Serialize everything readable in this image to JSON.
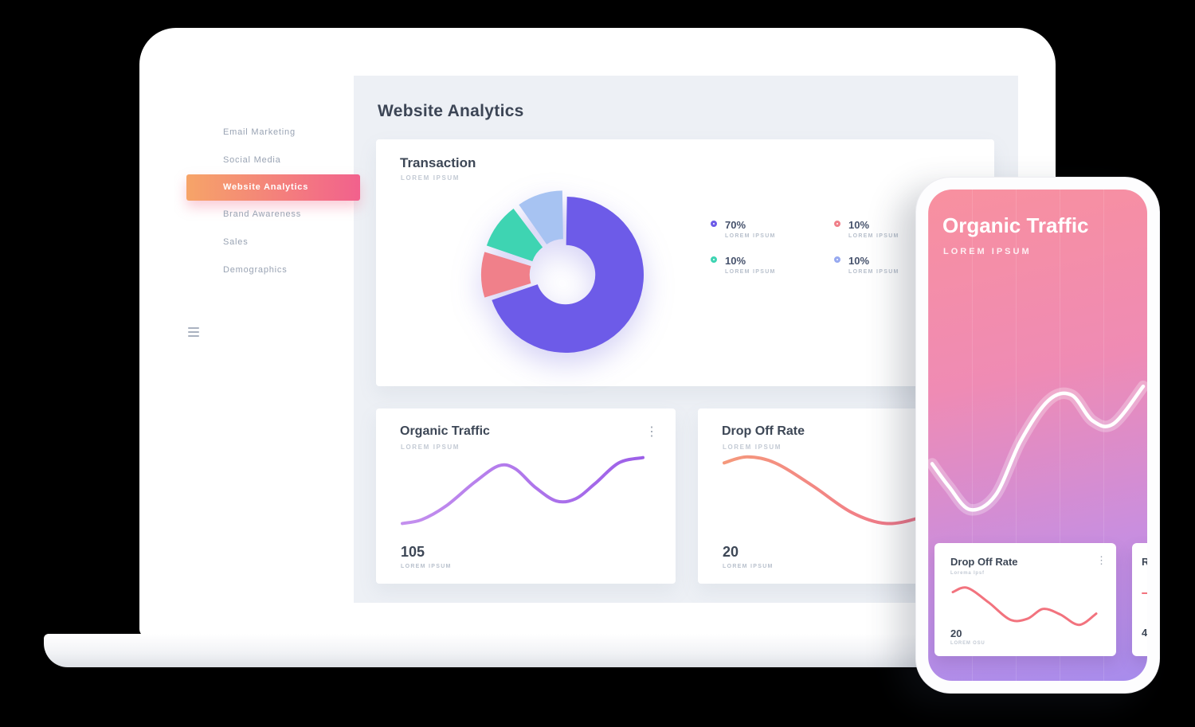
{
  "icons": {
    "kebab": "⋮"
  },
  "laptop": {
    "sidebar": {
      "items": [
        {
          "label": "Email Marketing",
          "active": false
        },
        {
          "label": "Social Media",
          "active": false
        },
        {
          "label": "Website Analytics",
          "active": true
        },
        {
          "label": "Brand Awareness",
          "active": false
        },
        {
          "label": "Sales",
          "active": false
        },
        {
          "label": "Demographics",
          "active": false
        }
      ]
    },
    "page_title": "Website Analytics",
    "transaction_card": {
      "title": "Transaction",
      "subtitle": "LOREM IPSUM",
      "legend": [
        {
          "value": "70%",
          "label": "LOREM IPSUM",
          "color": "#6d5be8"
        },
        {
          "value": "10%",
          "label": "LOREM IPSUM",
          "color": "#f0808a"
        },
        {
          "value": "10%",
          "label": "LOREM IPSUM",
          "color": "#3ed4b2"
        },
        {
          "value": "10%",
          "label": "LOREM IPSUM",
          "color": "#97a9f0"
        }
      ]
    },
    "organic_card": {
      "title": "Organic Traffic",
      "subtitle": "LOREM IPSUM",
      "value": "105",
      "value_label": "LOREM IPSUM"
    },
    "dropoff_card": {
      "title": "Drop Off Rate",
      "subtitle": "LOREM IPSUM",
      "value": "20",
      "value_label": "LOREM IPSUM"
    }
  },
  "phone": {
    "title": "Organic Traffic",
    "subtitle": "LOREM IPSUM",
    "dropoff_card": {
      "title": "Drop Off Rate",
      "subtitle": "Lorema Ipsf",
      "value": "20",
      "value_label": "LOREM OSU"
    },
    "partial_card": {
      "title": "R",
      "value": "4"
    }
  },
  "chart_data": [
    {
      "id": "transaction-donut",
      "type": "pie",
      "title": "Transaction",
      "values": [
        70,
        10,
        10,
        10
      ],
      "labels": [
        "LOREM IPSUM",
        "LOREM IPSUM",
        "LOREM IPSUM",
        "LOREM IPSUM"
      ],
      "legend_values": [
        "70%",
        "10%",
        "10%",
        "10%"
      ],
      "colors": [
        "#6d5be8",
        "#f0808a",
        "#3ed4b2",
        "#a7c3f2"
      ],
      "donut_hole": 0.38,
      "start_angle": 0,
      "explode": 8,
      "legend_position": "right"
    },
    {
      "id": "organic-line",
      "type": "line",
      "title": "Organic Traffic",
      "value": 105,
      "colors": [
        "#c490ee",
        "#9c5fe8"
      ],
      "width": 4,
      "points": [
        [
          0,
          0.93
        ],
        [
          0.08,
          0.88
        ],
        [
          0.18,
          0.7
        ],
        [
          0.3,
          0.38
        ],
        [
          0.4,
          0.16
        ],
        [
          0.47,
          0.2
        ],
        [
          0.55,
          0.44
        ],
        [
          0.64,
          0.63
        ],
        [
          0.72,
          0.6
        ],
        [
          0.8,
          0.4
        ],
        [
          0.9,
          0.12
        ],
        [
          1,
          0.05
        ]
      ]
    },
    {
      "id": "dropoff-line",
      "type": "line",
      "title": "Drop Off Rate",
      "value": 20,
      "colors": [
        "#f5997c",
        "#ef6e8e"
      ],
      "width": 4,
      "points": [
        [
          0,
          0.12
        ],
        [
          0.1,
          0.04
        ],
        [
          0.22,
          0.12
        ],
        [
          0.38,
          0.42
        ],
        [
          0.55,
          0.78
        ],
        [
          0.7,
          0.93
        ],
        [
          0.85,
          0.85
        ],
        [
          1,
          0.68
        ]
      ]
    },
    {
      "id": "phone-line",
      "type": "line",
      "title": "Organic Traffic (mobile)",
      "colors": [
        "#ffffff",
        "#ffffff"
      ],
      "width": 4.5,
      "glow": true,
      "points": [
        [
          0,
          0.58
        ],
        [
          0.08,
          0.74
        ],
        [
          0.18,
          0.9
        ],
        [
          0.3,
          0.8
        ],
        [
          0.42,
          0.42
        ],
        [
          0.55,
          0.14
        ],
        [
          0.66,
          0.1
        ],
        [
          0.76,
          0.28
        ],
        [
          0.86,
          0.3
        ],
        [
          1,
          0.04
        ]
      ]
    },
    {
      "id": "phone-card-line",
      "type": "line",
      "title": "Drop Off Rate (mobile)",
      "colors": [
        "#f2737e",
        "#f2737e"
      ],
      "width": 3,
      "points": [
        [
          0,
          0.16
        ],
        [
          0.1,
          0.06
        ],
        [
          0.25,
          0.4
        ],
        [
          0.4,
          0.8
        ],
        [
          0.52,
          0.78
        ],
        [
          0.63,
          0.55
        ],
        [
          0.75,
          0.68
        ],
        [
          0.88,
          0.92
        ],
        [
          1,
          0.66
        ]
      ]
    }
  ]
}
